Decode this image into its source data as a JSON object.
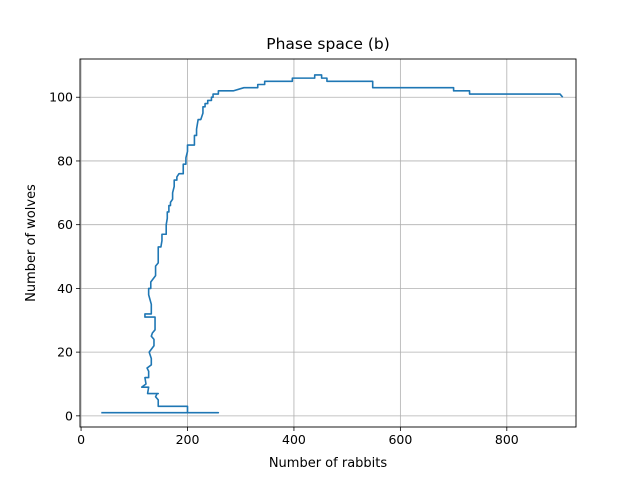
{
  "chart_data": {
    "type": "line",
    "title": "Phase space (b)",
    "xlabel": "Number of rabbits",
    "ylabel": "Number of wolves",
    "xlim": [
      -2,
      930
    ],
    "ylim": [
      -3.5,
      112
    ],
    "xticks": [
      0,
      200,
      400,
      600,
      800
    ],
    "yticks": [
      0,
      20,
      40,
      60,
      80,
      100
    ],
    "grid": true,
    "line_color": "#1f77b4",
    "series": [
      {
        "x": [
          38,
          258,
          258,
          200,
          200,
          145,
          145,
          140,
          143,
          140,
          145,
          125,
          127,
          114,
          114,
          122,
          120,
          127,
          127,
          124,
          132,
          132,
          128,
          137,
          137,
          132,
          134,
          139,
          139,
          120,
          120,
          132,
          132,
          127,
          127,
          131,
          131,
          140,
          140,
          145,
          145,
          145,
          150,
          152,
          152,
          160,
          160,
          162,
          162,
          165,
          165,
          168,
          168,
          172,
          172,
          175,
          175,
          180,
          180,
          184,
          184,
          192,
          192,
          197,
          197,
          200,
          200,
          213,
          213,
          217,
          217,
          218,
          220,
          221,
          225,
          229,
          229,
          233,
          233,
          238,
          238,
          245,
          245,
          248,
          248,
          258,
          258,
          286,
          286,
          306,
          306,
          332,
          332,
          345,
          345,
          348,
          348,
          397,
          397,
          400,
          400,
          439,
          439,
          452,
          452,
          462,
          462,
          480,
          480,
          548,
          548,
          700,
          700,
          730,
          730,
          755,
          755,
          900,
          905
        ],
        "y": [
          1,
          1,
          1,
          1,
          3,
          3,
          5,
          6,
          7,
          7,
          7,
          7,
          9,
          9,
          9,
          10,
          12,
          12,
          14,
          15,
          16,
          18,
          20,
          22,
          24,
          25,
          26,
          27,
          31,
          31,
          32,
          32,
          35,
          38,
          40,
          40,
          42,
          44,
          47,
          48,
          50,
          53,
          53,
          55,
          57,
          57,
          60,
          62,
          64,
          64,
          66,
          66,
          67,
          68,
          70,
          72,
          74,
          74,
          75,
          76,
          76,
          76,
          79,
          79,
          81,
          83,
          85,
          85,
          88,
          88,
          90,
          91,
          93,
          93,
          93,
          95,
          97,
          97,
          98,
          98,
          99,
          99,
          100,
          100,
          101,
          101,
          102,
          102,
          102,
          103,
          103,
          103,
          104,
          104,
          105,
          105,
          105,
          105,
          106,
          106,
          106,
          106,
          107,
          107,
          106,
          106,
          105,
          105,
          105,
          105,
          103,
          103,
          102,
          102,
          101,
          101,
          101,
          101,
          100
        ]
      }
    ]
  }
}
